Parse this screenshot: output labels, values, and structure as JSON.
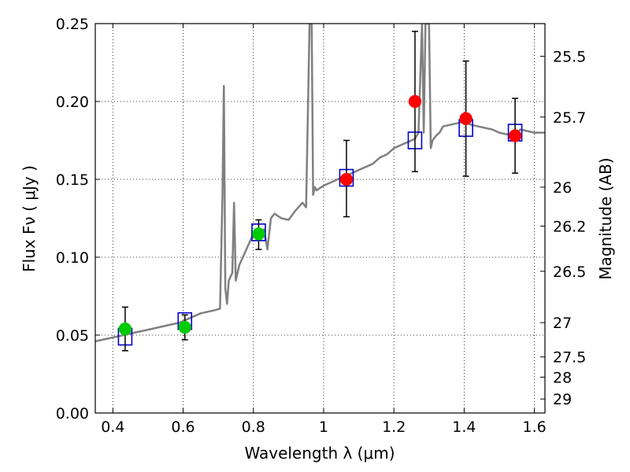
{
  "chart_data": {
    "type": "scatter",
    "title": "",
    "xlabel": "Wavelength  λ (μm)",
    "ylabel": "Flux  Fν  ( μJy )",
    "y2label": "Magnitude (AB)",
    "xlim": [
      0.35,
      1.63
    ],
    "ylim": [
      0.0,
      0.25
    ],
    "grid": true,
    "x_ticks": [
      0.4,
      0.6,
      0.8,
      1.0,
      1.2,
      1.4,
      1.6
    ],
    "x_tick_labels": [
      "0.4",
      "0.6",
      "0.8",
      "1",
      "1.2",
      "1.4",
      "1.6"
    ],
    "y_ticks": [
      0.0,
      0.05,
      0.1,
      0.15,
      0.2,
      0.25
    ],
    "y_tick_labels": [
      "0.00",
      "0.05",
      "0.10",
      "0.15",
      "0.20",
      "0.25"
    ],
    "y2_ticks": [
      {
        "label": "25.5",
        "flux": 0.229
      },
      {
        "label": "25.7",
        "flux": 0.19
      },
      {
        "label": "26",
        "flux": 0.145
      },
      {
        "label": "26.2",
        "flux": 0.12
      },
      {
        "label": "26.5",
        "flux": 0.091
      },
      {
        "label": "27",
        "flux": 0.058
      },
      {
        "label": "27.5",
        "flux": 0.036
      },
      {
        "label": "28",
        "flux": 0.023
      },
      {
        "label": "29",
        "flux": 0.009
      }
    ],
    "colors": {
      "spectrum": "#808080",
      "model": "#0000cc",
      "optical": "#00cc00",
      "nir": "#ff0000",
      "errorbar": "#000000"
    },
    "spectrum": {
      "x": [
        0.35,
        0.37,
        0.39,
        0.41,
        0.43,
        0.45,
        0.47,
        0.49,
        0.51,
        0.53,
        0.55,
        0.57,
        0.59,
        0.61,
        0.63,
        0.65,
        0.67,
        0.69,
        0.705,
        0.712,
        0.716,
        0.72,
        0.725,
        0.73,
        0.74,
        0.745,
        0.75,
        0.76,
        0.77,
        0.78,
        0.79,
        0.8,
        0.81,
        0.82,
        0.83,
        0.84,
        0.85,
        0.86,
        0.88,
        0.9,
        0.92,
        0.94,
        0.95,
        0.96,
        0.963,
        0.966,
        0.97,
        0.975,
        0.98,
        1.0,
        1.02,
        1.04,
        1.06,
        1.08,
        1.1,
        1.12,
        1.14,
        1.16,
        1.18,
        1.2,
        1.22,
        1.24,
        1.26,
        1.27,
        1.28,
        1.285,
        1.29,
        1.3,
        1.305,
        1.31,
        1.32,
        1.33,
        1.34,
        1.36,
        1.38,
        1.4,
        1.42,
        1.44,
        1.46,
        1.48,
        1.5,
        1.52,
        1.54,
        1.56,
        1.58,
        1.6,
        1.63
      ],
      "y": [
        0.046,
        0.047,
        0.048,
        0.049,
        0.05,
        0.051,
        0.052,
        0.053,
        0.054,
        0.055,
        0.056,
        0.057,
        0.058,
        0.06,
        0.062,
        0.064,
        0.065,
        0.066,
        0.067,
        0.14,
        0.21,
        0.08,
        0.07,
        0.085,
        0.09,
        0.135,
        0.085,
        0.095,
        0.1,
        0.105,
        0.11,
        0.115,
        0.118,
        0.112,
        0.118,
        0.105,
        0.125,
        0.128,
        0.125,
        0.124,
        0.13,
        0.135,
        0.132,
        0.25,
        0.25,
        0.25,
        0.14,
        0.145,
        0.143,
        0.146,
        0.148,
        0.15,
        0.152,
        0.154,
        0.156,
        0.158,
        0.16,
        0.164,
        0.166,
        0.17,
        0.172,
        0.174,
        0.176,
        0.18,
        0.25,
        0.18,
        0.25,
        0.25,
        0.17,
        0.175,
        0.178,
        0.18,
        0.184,
        0.185,
        0.186,
        0.187,
        0.185,
        0.184,
        0.183,
        0.182,
        0.18,
        0.179,
        0.178,
        0.182,
        0.181,
        0.18,
        0.18
      ]
    },
    "series": [
      {
        "marker": "square",
        "x": [
          0.435,
          0.605,
          0.815,
          1.065,
          1.26,
          1.405,
          1.545
        ],
        "y": [
          0.049,
          0.059,
          0.116,
          0.151,
          0.175,
          0.183,
          0.18
        ]
      },
      {
        "marker": "circle",
        "x": [
          0.435,
          0.605,
          0.815
        ],
        "y": [
          0.054,
          0.055,
          0.115
        ],
        "yerr_low": [
          0.04,
          0.047,
          0.105
        ],
        "yerr_high": [
          0.068,
          0.063,
          0.124
        ]
      },
      {
        "marker": "circle",
        "x": [
          1.065,
          1.26,
          1.405,
          1.545
        ],
        "y": [
          0.15,
          0.2,
          0.189,
          0.178
        ],
        "yerr_low": [
          0.126,
          0.155,
          0.152,
          0.154
        ],
        "yerr_high": [
          0.175,
          0.245,
          0.226,
          0.202
        ]
      }
    ]
  }
}
